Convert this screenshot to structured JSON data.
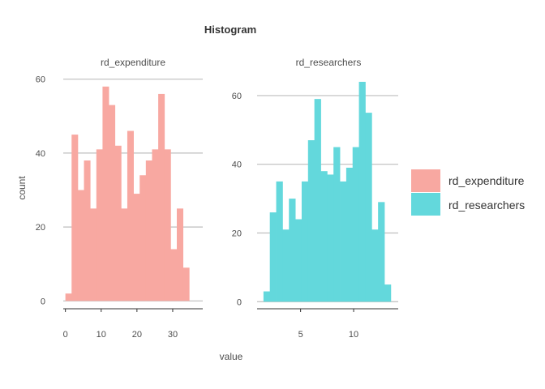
{
  "chart_data": {
    "type": "bar",
    "title": "Histogram",
    "xlabel": "value",
    "ylabel": "count",
    "grid": "horizontal",
    "legend_placement": "right",
    "colors": {
      "rd_expenditure": "#F8A8A1",
      "rd_researchers": "#63D8DC",
      "gridline": "#BEBEBE",
      "text": "#4D4D4D",
      "title": "#333333"
    },
    "panels": [
      {
        "name": "rd_expenditure",
        "xlim": [
          -0.6,
          38.4
        ],
        "ylim": [
          -3,
          63
        ],
        "xticks": [
          0,
          10,
          20,
          30
        ],
        "yticks": [
          0,
          20,
          40,
          60
        ],
        "bin_width": 1.73,
        "bins": [
          {
            "x0": 0.0,
            "count": 2
          },
          {
            "x0": 1.73,
            "count": 45
          },
          {
            "x0": 3.46,
            "count": 30
          },
          {
            "x0": 5.19,
            "count": 38
          },
          {
            "x0": 6.92,
            "count": 25
          },
          {
            "x0": 8.65,
            "count": 41
          },
          {
            "x0": 10.38,
            "count": 58
          },
          {
            "x0": 12.11,
            "count": 53
          },
          {
            "x0": 13.84,
            "count": 42
          },
          {
            "x0": 15.57,
            "count": 25
          },
          {
            "x0": 17.3,
            "count": 46
          },
          {
            "x0": 19.03,
            "count": 29
          },
          {
            "x0": 20.76,
            "count": 34
          },
          {
            "x0": 22.49,
            "count": 38
          },
          {
            "x0": 24.22,
            "count": 41
          },
          {
            "x0": 25.95,
            "count": 56
          },
          {
            "x0": 27.68,
            "count": 41
          },
          {
            "x0": 29.41,
            "count": 14
          },
          {
            "x0": 31.14,
            "count": 25
          },
          {
            "x0": 32.87,
            "count": 9
          }
        ]
      },
      {
        "name": "rd_researchers",
        "xlim": [
          0.9,
          14.2
        ],
        "ylim": [
          -3,
          68
        ],
        "xticks": [
          5,
          10
        ],
        "yticks": [
          0,
          20,
          40,
          60
        ],
        "bin_width": 0.6,
        "bins": [
          {
            "x0": 1.5,
            "count": 3
          },
          {
            "x0": 2.1,
            "count": 26
          },
          {
            "x0": 2.7,
            "count": 35
          },
          {
            "x0": 3.3,
            "count": 21
          },
          {
            "x0": 3.9,
            "count": 30
          },
          {
            "x0": 4.5,
            "count": 24
          },
          {
            "x0": 5.1,
            "count": 35
          },
          {
            "x0": 5.7,
            "count": 47
          },
          {
            "x0": 6.3,
            "count": 59
          },
          {
            "x0": 6.9,
            "count": 38
          },
          {
            "x0": 7.5,
            "count": 37
          },
          {
            "x0": 8.1,
            "count": 45
          },
          {
            "x0": 8.7,
            "count": 35
          },
          {
            "x0": 9.3,
            "count": 39
          },
          {
            "x0": 9.9,
            "count": 45
          },
          {
            "x0": 10.5,
            "count": 64
          },
          {
            "x0": 11.1,
            "count": 55
          },
          {
            "x0": 11.7,
            "count": 21
          },
          {
            "x0": 12.3,
            "count": 29
          },
          {
            "x0": 12.9,
            "count": 5
          }
        ]
      }
    ],
    "legend": [
      "rd_expenditure",
      "rd_researchers"
    ]
  }
}
